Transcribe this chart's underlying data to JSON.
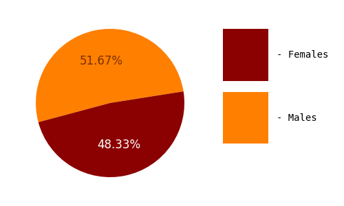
{
  "slices": [
    51.67,
    48.33
  ],
  "slice_order": [
    "Males",
    "Females"
  ],
  "labels": [
    "51.67%",
    "48.33%"
  ],
  "colors": [
    "#FF7F00",
    "#8B0000"
  ],
  "legend_labels": [
    "- Females",
    "- Males"
  ],
  "legend_colors": [
    "#8B0000",
    "#FF7F00"
  ],
  "label_colors": [
    "#7A3000",
    "#FFFFFF"
  ],
  "label_fontsize": 12,
  "legend_fontsize": 10,
  "startangle": 9,
  "background_color": "#FFFFFF"
}
